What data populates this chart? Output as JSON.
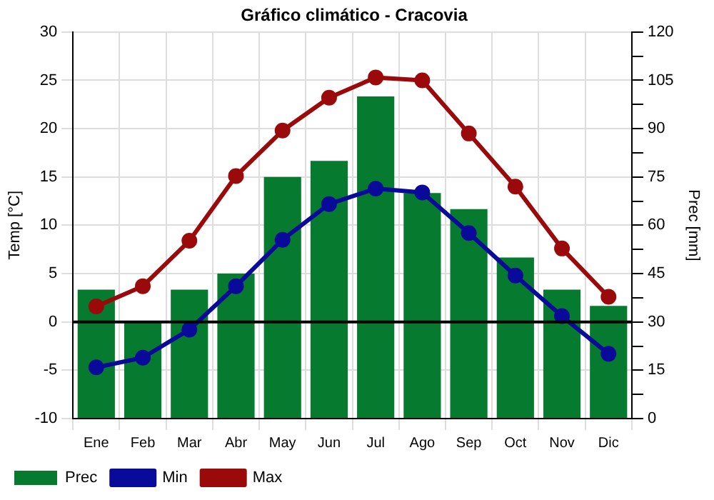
{
  "chart_data": {
    "type": "bar",
    "title": "Gráfico climático - Cracovia",
    "ylabel": "Temp [°C]",
    "y2label": "Prec [mm]",
    "categories": [
      "Ene",
      "Feb",
      "Mar",
      "Abr",
      "May",
      "Jun",
      "Jul",
      "Ago",
      "Sep",
      "Oct",
      "Nov",
      "Dic"
    ],
    "series": [
      {
        "name": "Prec",
        "axis": "y2",
        "color": "#067a2e",
        "values": [
          40,
          30,
          40,
          45,
          75,
          80,
          100,
          70,
          65,
          50,
          40,
          35
        ]
      },
      {
        "name": "Min",
        "type": "line",
        "color": "#0a0a9a",
        "values": [
          -4.7,
          -3.7,
          -0.8,
          3.7,
          8.5,
          12.2,
          13.8,
          13.4,
          9.2,
          4.8,
          0.6,
          -3.3
        ]
      },
      {
        "name": "Max",
        "type": "line",
        "color": "#9b0a0a",
        "values": [
          1.6,
          3.7,
          8.4,
          15.1,
          19.8,
          23.2,
          25.3,
          25.0,
          19.5,
          14.0,
          7.6,
          2.6
        ]
      }
    ],
    "ylim": [
      -10,
      30
    ],
    "yticks": [
      -10,
      -5,
      0,
      5,
      10,
      15,
      20,
      25,
      30
    ],
    "y2lim": [
      0,
      120
    ],
    "y2ticks": [
      0,
      {
        "value": 7.5,
        "label": null
      },
      15,
      {
        "value": 22.5,
        "label": null
      },
      30,
      {
        "value": 37.5,
        "label": null
      },
      45,
      {
        "value": 52.5,
        "label": null
      },
      60,
      {
        "value": 67.5,
        "label": null
      },
      75,
      {
        "value": 82.5,
        "label": null
      },
      90,
      {
        "value": 97.5,
        "label": null
      },
      105,
      {
        "value": 112.5,
        "label": null
      },
      120
    ],
    "ref_lines": [
      {
        "axis": "y",
        "value": 0,
        "color": "#000000"
      }
    ],
    "grid": true,
    "legend": "bottom",
    "marker": "circle"
  }
}
